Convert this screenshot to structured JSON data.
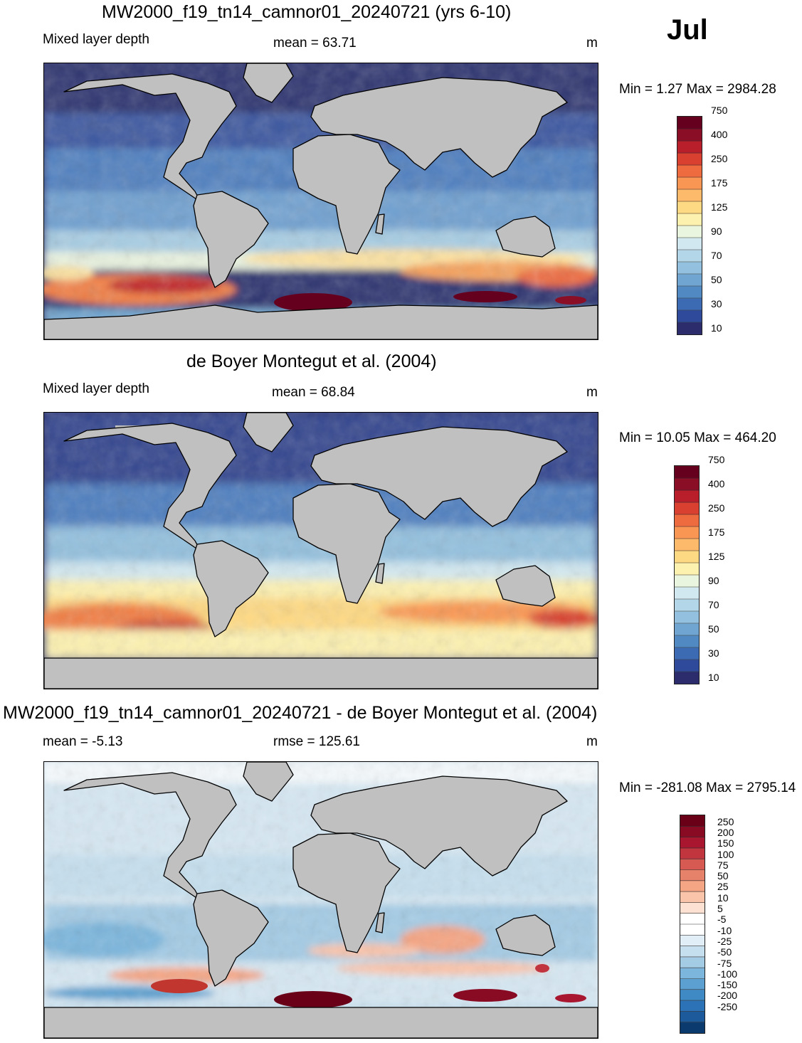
{
  "month": "Jul",
  "units": "m",
  "panels": [
    {
      "title": "MW2000_f19_tn14_camnor01_20240721 (yrs 6-10)",
      "left_label": "Mixed layer depth",
      "center_label": "mean =  63.71",
      "right_label": "m",
      "minmax": "Min =   1.27 Max = 2984.28",
      "field": "model"
    },
    {
      "title": "de Boyer Montegut et al. (2004)",
      "left_label": "Mixed layer depth",
      "center_label": "mean =  68.84",
      "right_label": "m",
      "minmax": "Min =  10.05 Max = 464.20",
      "field": "obs"
    },
    {
      "title": "MW2000_f19_tn14_camnor01_20240721 - de Boyer Montegut et al. (2004)",
      "left_label": "mean =  -5.13",
      "center_label": "rmse = 125.61",
      "right_label": "m",
      "minmax": "Min = -281.08 Max = 2795.14",
      "field": "diff"
    }
  ],
  "colorbars": {
    "mld": {
      "colors": [
        "#2c2c6c",
        "#2f4a9a",
        "#3d6bb3",
        "#5189c2",
        "#6fa5d0",
        "#93c0de",
        "#b3d6e8",
        "#d2e8f0",
        "#eaf5e0",
        "#fdf1b0",
        "#fed983",
        "#fdba6b",
        "#f99653",
        "#ee6a3f",
        "#d9402f",
        "#b81f2a",
        "#8a0f26",
        "#66001f"
      ],
      "labels": [
        "10",
        "30",
        "50",
        "70",
        "90",
        "125",
        "175",
        "250",
        "400",
        "750"
      ]
    },
    "diff": {
      "colors": [
        "#0a3a6e",
        "#1c5a9c",
        "#2b72b6",
        "#3f8ac4",
        "#5ba0d0",
        "#7db6dc",
        "#a4cbe4",
        "#c6dfee",
        "#e1eef7",
        "#ffffff",
        "#ffffff",
        "#fde1d2",
        "#fac4aa",
        "#f4a584",
        "#e6826a",
        "#d65a51",
        "#c1363e",
        "#a8172f",
        "#880a23",
        "#6a0018"
      ],
      "labels": [
        "250",
        "200",
        "150",
        "100",
        "75",
        "50",
        "25",
        "10",
        "5",
        "-5",
        "-10",
        "-25",
        "-50",
        "-75",
        "-100",
        "-150",
        "-200",
        "-250"
      ]
    }
  }
}
